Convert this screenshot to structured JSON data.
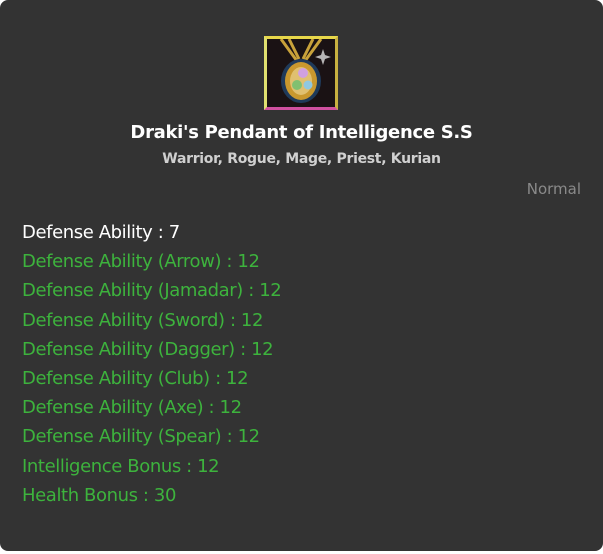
{
  "item": {
    "icon": "pendant-icon",
    "name": "Draki's Pendant of Intelligence S.S",
    "classes": "Warrior, Rogue, Mage, Priest, Kurian",
    "grade": "Normal"
  },
  "stats": [
    {
      "text": "Defense Ability : 7",
      "color": "white"
    },
    {
      "text": "Defense Ability (Arrow) : 12",
      "color": "green"
    },
    {
      "text": "Defense Ability (Jamadar) : 12",
      "color": "green"
    },
    {
      "text": "Defense Ability (Sword) : 12",
      "color": "green"
    },
    {
      "text": "Defense Ability (Dagger) : 12",
      "color": "green"
    },
    {
      "text": "Defense Ability (Club) : 12",
      "color": "green"
    },
    {
      "text": "Defense Ability (Axe) : 12",
      "color": "green"
    },
    {
      "text": "Defense Ability (Spear) : 12",
      "color": "green"
    },
    {
      "text": "Intelligence Bonus : 12",
      "color": "green"
    },
    {
      "text": "Health Bonus : 30",
      "color": "green"
    }
  ],
  "colors": {
    "background": "#333333",
    "base_stat": "#ffffff",
    "bonus_stat": "#3db33d",
    "grade": "#8a8a8a"
  }
}
